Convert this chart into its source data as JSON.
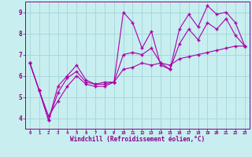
{
  "background_color": "#c8eef0",
  "grid_color": "#a8d8dc",
  "line_color": "#aa00aa",
  "marker": "+",
  "xlabel": "Windchill (Refroidissement éolien,°C)",
  "xlabel_color": "#880088",
  "tick_color": "#880088",
  "xlim": [
    -0.5,
    23.5
  ],
  "ylim": [
    3.5,
    9.5
  ],
  "yticks": [
    4,
    5,
    6,
    7,
    8,
    9
  ],
  "xticks": [
    0,
    1,
    2,
    3,
    4,
    5,
    6,
    7,
    8,
    9,
    10,
    11,
    12,
    13,
    14,
    15,
    16,
    17,
    18,
    19,
    20,
    21,
    22,
    23
  ],
  "line1_x": [
    0,
    1,
    2,
    3,
    4,
    5,
    6,
    7,
    8,
    9,
    10,
    11,
    12,
    13,
    14,
    15,
    16,
    17,
    18,
    19,
    20,
    21,
    22,
    23
  ],
  "line1_y": [
    6.6,
    5.3,
    3.9,
    5.5,
    6.0,
    6.5,
    5.8,
    5.6,
    5.7,
    5.7,
    9.0,
    8.5,
    7.3,
    8.1,
    6.5,
    6.3,
    8.2,
    8.9,
    8.3,
    9.3,
    8.9,
    9.0,
    8.5,
    7.4
  ],
  "line2_x": [
    0,
    1,
    2,
    3,
    4,
    5,
    6,
    7,
    8,
    9,
    10,
    11,
    12,
    13,
    14,
    15,
    16,
    17,
    18,
    19,
    20,
    21,
    22,
    23
  ],
  "line2_y": [
    6.6,
    5.3,
    4.1,
    4.8,
    5.5,
    6.0,
    5.6,
    5.5,
    5.5,
    5.7,
    6.3,
    6.4,
    6.6,
    6.5,
    6.6,
    6.5,
    6.8,
    6.9,
    7.0,
    7.1,
    7.2,
    7.3,
    7.4,
    7.4
  ],
  "line3_x": [
    0,
    1,
    2,
    3,
    4,
    5,
    6,
    7,
    8,
    9,
    10,
    11,
    12,
    13,
    14,
    15,
    16,
    17,
    18,
    19,
    20,
    21,
    22,
    23
  ],
  "line3_y": [
    6.6,
    5.3,
    3.9,
    5.2,
    5.9,
    6.2,
    5.7,
    5.6,
    5.6,
    5.7,
    7.0,
    7.1,
    7.0,
    7.3,
    6.6,
    6.3,
    7.5,
    8.2,
    7.7,
    8.5,
    8.2,
    8.7,
    7.9,
    7.4
  ]
}
